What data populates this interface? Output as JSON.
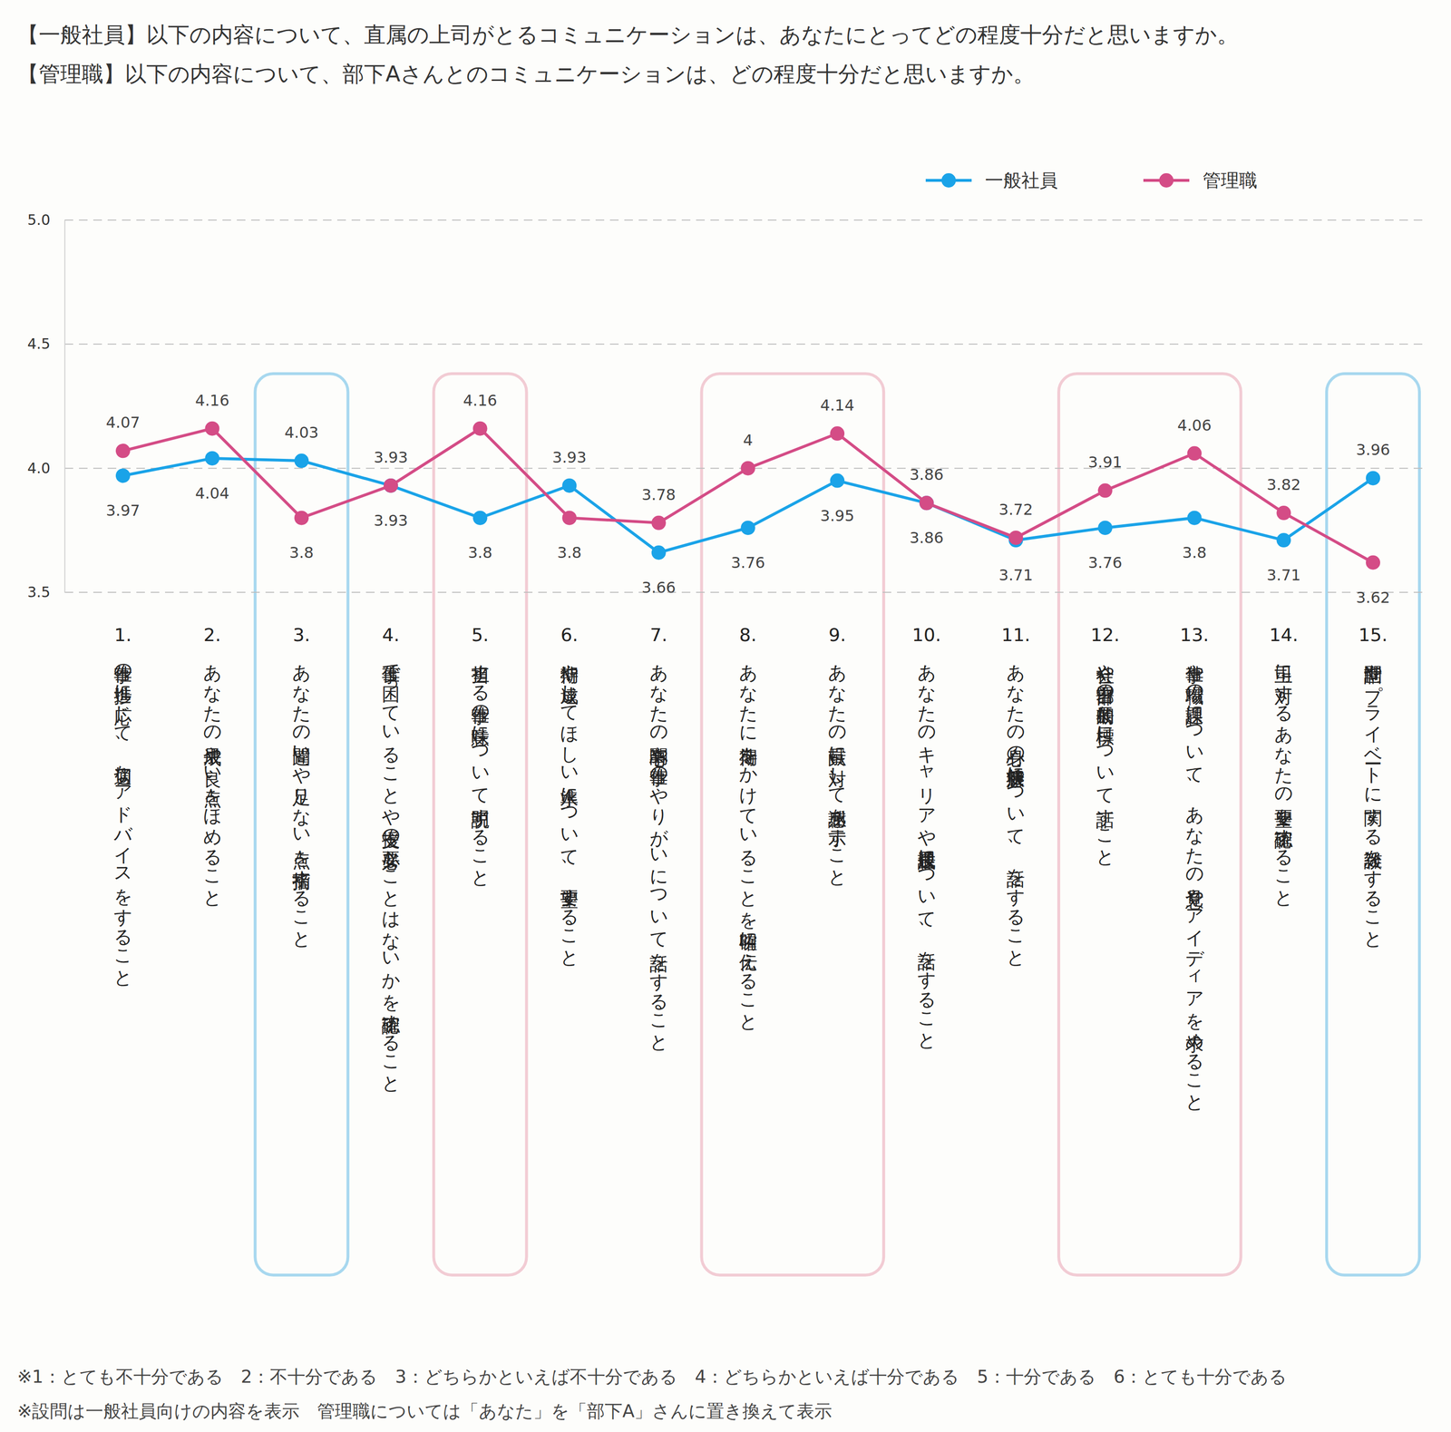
{
  "chart_data": {
    "type": "line",
    "title": "【一般社員】以下の内容について、直属の上司がとるコミュニケーションは、あなたにとってどの程度十分だと思いますか。",
    "subtitle": "【管理職】以下の内容について、部下Aさんとのコミュニケーションは、どの程度十分だと思いますか。",
    "annotations": [
      "※1：とても不十分である　2：不十分である　3：どちらかといえば不十分である　4：どちらかといえば十分である　5：十分である　6：とても十分である",
      "※設問は一般社員向けの内容を表示　管理職については「あなた」を「部下A」さんに置き換えて表示"
    ],
    "categories": [
      "1. 仕事の進捗に応じて、適切なアドバイスをすること",
      "2. あなたの成果や良い点をほめること",
      "3. あなたの間違いや足りない点を指摘すること",
      "4. 仕事で困っていることや支援の必要なことはないかを確認すること",
      "5. 担当する仕事の意味について説明すること",
      "6. 期待や達成してほしい水準について、要望すること",
      "7. あなたの関心事や仕事のやりがいについて話をすること",
      "8. あなたに期待をかけていることを明確に伝えること",
      "9. あなたの貢献に対して感謝を示すこと",
      "10. あなたのキャリアや成長課題について、話をすること",
      "11. あなたの心身の健康状態について、話をすること",
      "12. 会社や自部署の長期的な目標について話すこと",
      "13. 仕事や職場の課題について、あなたの意見やアイディアを求めること",
      "14. 上司に対するあなたの要望を確認すること",
      "15. 世間話やプライベートに関する雑談をすること"
    ],
    "series": [
      {
        "name": "一般社員",
        "color": "#1aa3e8",
        "values": [
          3.97,
          4.04,
          4.03,
          3.93,
          3.8,
          3.93,
          3.66,
          3.76,
          3.95,
          3.86,
          3.71,
          3.76,
          3.8,
          3.71,
          3.96
        ]
      },
      {
        "name": "管理職",
        "color": "#d44c86",
        "values": [
          4.07,
          4.16,
          3.8,
          3.93,
          4.16,
          3.8,
          3.78,
          4.0,
          4.14,
          3.86,
          3.72,
          3.91,
          4.06,
          3.82,
          3.62
        ]
      }
    ],
    "ylim": [
      3.5,
      5.0
    ],
    "yticks": [
      3.5,
      {
        "value": 4.0,
        "label": "4.0"
      },
      4.5,
      {
        "value": 5.0,
        "label": "5.0"
      }
    ],
    "grid": true,
    "legend": "top-right",
    "data_labels": true,
    "marker": "circle",
    "line_style": "solid"
  }
}
